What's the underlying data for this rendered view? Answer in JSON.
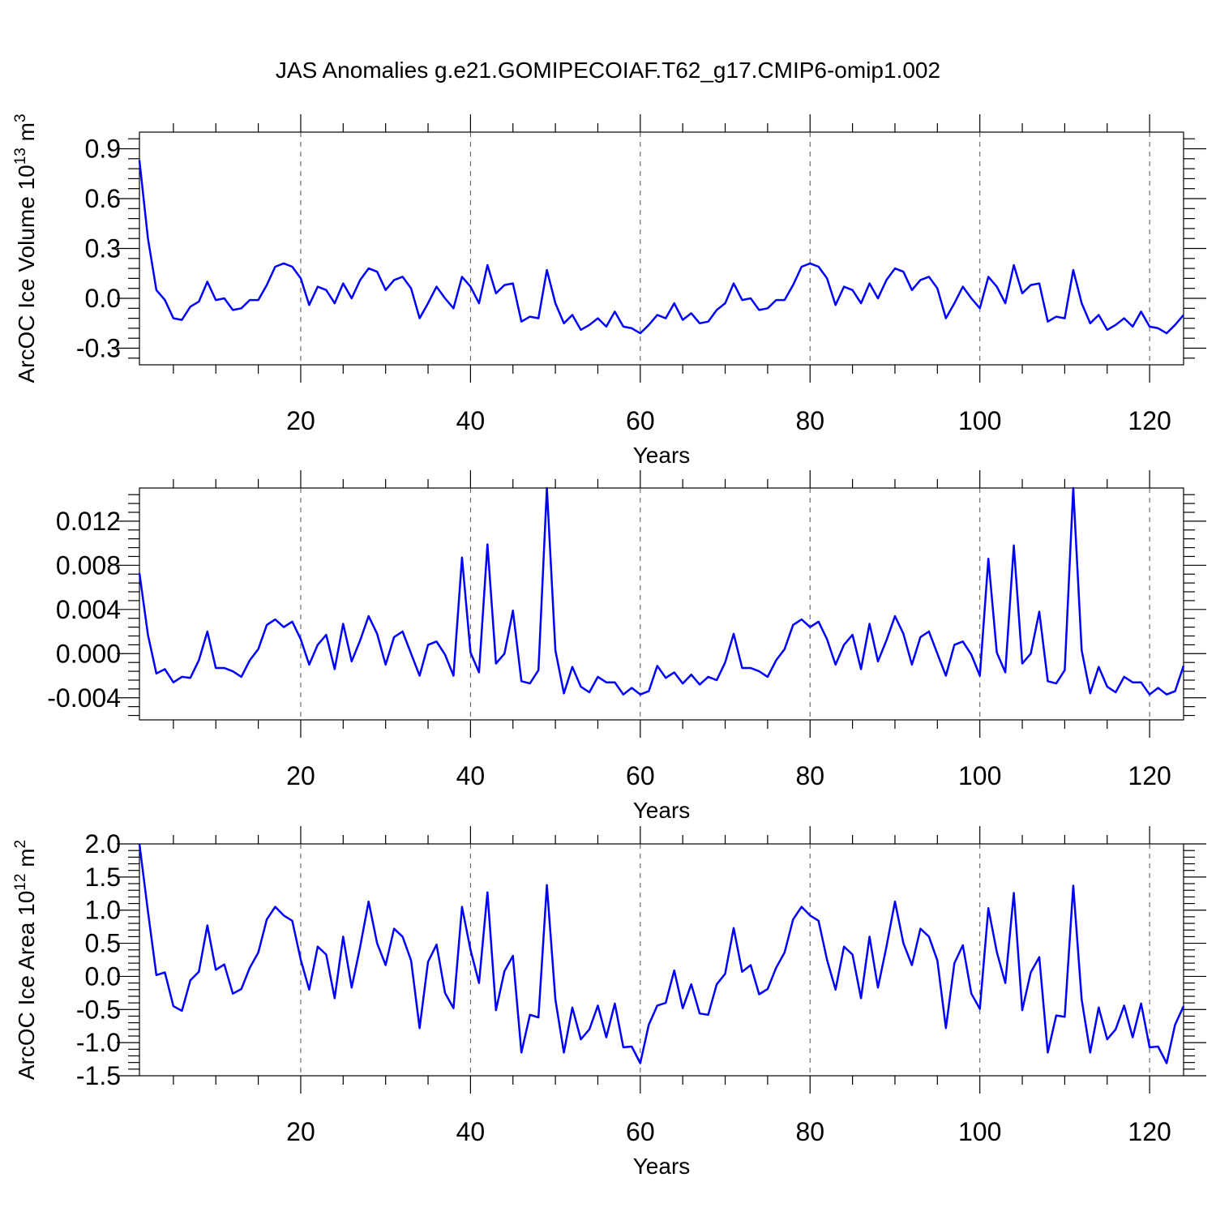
{
  "title": "JAS Anomalies g.e21.GOMIPECOIAF.T62_g17.CMIP6-omip1.002",
  "colors": {
    "series": "#0000ff",
    "axis": "#000000",
    "grid": "#555555"
  },
  "chart_data": [
    {
      "type": "line",
      "title": "",
      "xlabel": "Years",
      "ylabel": "ArcOC Ice Volume 10",
      "ylabel_exp": "13",
      "ylabel_unit": " m",
      "ylabel_unit_exp": "3",
      "xlim": [
        1,
        124
      ],
      "ylim": [
        -0.4,
        1.0
      ],
      "xticks": [
        20,
        40,
        60,
        80,
        100,
        120
      ],
      "yticks": [
        -0.3,
        0.0,
        0.3,
        0.6,
        0.9
      ],
      "ytick_labels": [
        "-0.3",
        "0.0",
        "0.3",
        "0.6",
        "0.9"
      ],
      "grid": "vertical dashed at x ticks",
      "x_start": 1,
      "values": [
        0.83,
        0.36,
        0.05,
        -0.01,
        -0.12,
        -0.13,
        -0.05,
        -0.02,
        0.1,
        -0.01,
        0.0,
        -0.07,
        -0.06,
        -0.01,
        -0.01,
        0.08,
        0.19,
        0.21,
        0.19,
        0.12,
        -0.04,
        0.07,
        0.05,
        -0.03,
        0.09,
        0.0,
        0.11,
        0.18,
        0.16,
        0.05,
        0.11,
        0.13,
        0.06,
        -0.12,
        -0.03,
        0.07,
        0.0,
        -0.06,
        0.13,
        0.07,
        -0.03,
        0.2,
        0.03,
        0.08,
        0.09,
        -0.14,
        -0.11,
        -0.12,
        0.17,
        -0.03,
        -0.15,
        -0.1,
        -0.19,
        -0.16,
        -0.12,
        -0.17,
        -0.08,
        -0.17,
        -0.18,
        -0.21,
        -0.16,
        -0.1,
        -0.12,
        -0.03,
        -0.13,
        -0.09,
        -0.15,
        -0.14,
        -0.07,
        -0.03,
        0.09,
        -0.01,
        0.0,
        -0.07,
        -0.06,
        -0.01,
        -0.01,
        0.08,
        0.19,
        0.21,
        0.19,
        0.12,
        -0.04,
        0.07,
        0.05,
        -0.03,
        0.09,
        0.0,
        0.11,
        0.18,
        0.16,
        0.05,
        0.11,
        0.13,
        0.06,
        -0.12,
        -0.03,
        0.07,
        0.0,
        -0.06,
        0.13,
        0.07,
        -0.03,
        0.2,
        0.03,
        0.08,
        0.09,
        -0.14,
        -0.11,
        -0.12,
        0.17,
        -0.03,
        -0.15,
        -0.1,
        -0.19,
        -0.16,
        -0.12,
        -0.17,
        -0.08,
        -0.17,
        -0.18,
        -0.21,
        -0.16,
        -0.1
      ]
    },
    {
      "type": "line",
      "title": "",
      "xlabel": "Years",
      "ylabel": "",
      "ylabel_exp": "",
      "ylabel_unit": "",
      "ylabel_unit_exp": "",
      "xlim": [
        1,
        124
      ],
      "ylim": [
        -0.006,
        0.015
      ],
      "xticks": [
        20,
        40,
        60,
        80,
        100,
        120
      ],
      "yticks": [
        -0.004,
        0.0,
        0.004,
        0.008,
        0.012
      ],
      "ytick_labels": [
        "-0.004",
        "0.000",
        "0.004",
        "0.008",
        "0.012"
      ],
      "grid": "vertical dashed at x ticks",
      "x_start": 1,
      "values": [
        0.0073,
        0.0017,
        -0.0018,
        -0.0014,
        -0.0026,
        -0.0021,
        -0.0022,
        -0.0006,
        0.002,
        -0.0013,
        -0.0013,
        -0.0016,
        -0.0021,
        -0.0006,
        0.0004,
        0.0026,
        0.0031,
        0.0024,
        0.0029,
        0.0013,
        -0.001,
        0.0008,
        0.0017,
        -0.0014,
        0.0027,
        -0.0007,
        0.0012,
        0.0034,
        0.0018,
        -0.001,
        0.0015,
        0.002,
        0.0,
        -0.002,
        0.0008,
        0.0011,
        -0.0001,
        -0.002,
        0.0087,
        0.0001,
        -0.0017,
        0.0099,
        -0.0009,
        0.0,
        0.0039,
        -0.0025,
        -0.0027,
        -0.0015,
        0.015,
        0.0003,
        -0.0036,
        -0.0012,
        -0.003,
        -0.0035,
        -0.0021,
        -0.0026,
        -0.0026,
        -0.0037,
        -0.0031,
        -0.0037,
        -0.0034,
        -0.0011,
        -0.0022,
        -0.0017,
        -0.0027,
        -0.0019,
        -0.0028,
        -0.0021,
        -0.0024,
        -0.0008,
        0.0018,
        -0.0013,
        -0.0013,
        -0.0016,
        -0.0021,
        -0.0006,
        0.0004,
        0.0026,
        0.0031,
        0.0024,
        0.0029,
        0.0013,
        -0.001,
        0.0008,
        0.0017,
        -0.0014,
        0.0027,
        -0.0007,
        0.0012,
        0.0034,
        0.0018,
        -0.001,
        0.0015,
        0.002,
        0.0,
        -0.002,
        0.0008,
        0.0011,
        -0.0001,
        -0.002,
        0.0086,
        0.0001,
        -0.0017,
        0.0098,
        -0.0009,
        0.0,
        0.0038,
        -0.0025,
        -0.0027,
        -0.0015,
        0.015,
        0.0003,
        -0.0036,
        -0.0012,
        -0.003,
        -0.0035,
        -0.0021,
        -0.0026,
        -0.0026,
        -0.0037,
        -0.0031,
        -0.0037,
        -0.0034,
        -0.0011
      ]
    },
    {
      "type": "line",
      "title": "",
      "xlabel": "Years",
      "ylabel": "ArcOC Ice Area 10",
      "ylabel_exp": "12",
      "ylabel_unit": " m",
      "ylabel_unit_exp": "2",
      "xlim": [
        1,
        124
      ],
      "ylim": [
        -1.5,
        2.0
      ],
      "xticks": [
        20,
        40,
        60,
        80,
        100,
        120
      ],
      "yticks": [
        -1.5,
        -1.0,
        -0.5,
        0.0,
        0.5,
        1.0,
        1.5,
        2.0
      ],
      "ytick_labels": [
        "-1.5",
        "-1.0",
        "-0.5",
        "0.0",
        "0.5",
        "1.0",
        "1.5",
        "2.0"
      ],
      "grid": "vertical dashed at x ticks",
      "x_start": 1,
      "values": [
        2.0,
        0.98,
        0.02,
        0.06,
        -0.45,
        -0.52,
        -0.06,
        0.07,
        0.77,
        0.1,
        0.18,
        -0.26,
        -0.19,
        0.13,
        0.36,
        0.86,
        1.05,
        0.92,
        0.84,
        0.25,
        -0.2,
        0.45,
        0.33,
        -0.33,
        0.6,
        -0.17,
        0.45,
        1.13,
        0.5,
        0.17,
        0.72,
        0.6,
        0.24,
        -0.78,
        0.22,
        0.48,
        -0.25,
        -0.48,
        1.05,
        0.4,
        -0.1,
        1.27,
        -0.51,
        0.08,
        0.31,
        -1.15,
        -0.58,
        -0.62,
        1.38,
        -0.35,
        -1.15,
        -0.47,
        -0.95,
        -0.8,
        -0.44,
        -0.92,
        -0.41,
        -1.07,
        -1.06,
        -1.31,
        -0.73,
        -0.44,
        -0.4,
        0.09,
        -0.48,
        -0.12,
        -0.56,
        -0.58,
        -0.12,
        0.04,
        0.73,
        0.07,
        0.17,
        -0.27,
        -0.19,
        0.13,
        0.36,
        0.86,
        1.05,
        0.92,
        0.84,
        0.25,
        -0.2,
        0.45,
        0.33,
        -0.33,
        0.6,
        -0.17,
        0.45,
        1.13,
        0.5,
        0.17,
        0.72,
        0.6,
        0.24,
        -0.78,
        0.2,
        0.47,
        -0.26,
        -0.49,
        1.03,
        0.37,
        -0.1,
        1.26,
        -0.51,
        0.06,
        0.29,
        -1.15,
        -0.59,
        -0.61,
        1.37,
        -0.35,
        -1.15,
        -0.47,
        -0.95,
        -0.8,
        -0.44,
        -0.92,
        -0.41,
        -1.07,
        -1.06,
        -1.31,
        -0.73,
        -0.45
      ]
    }
  ]
}
